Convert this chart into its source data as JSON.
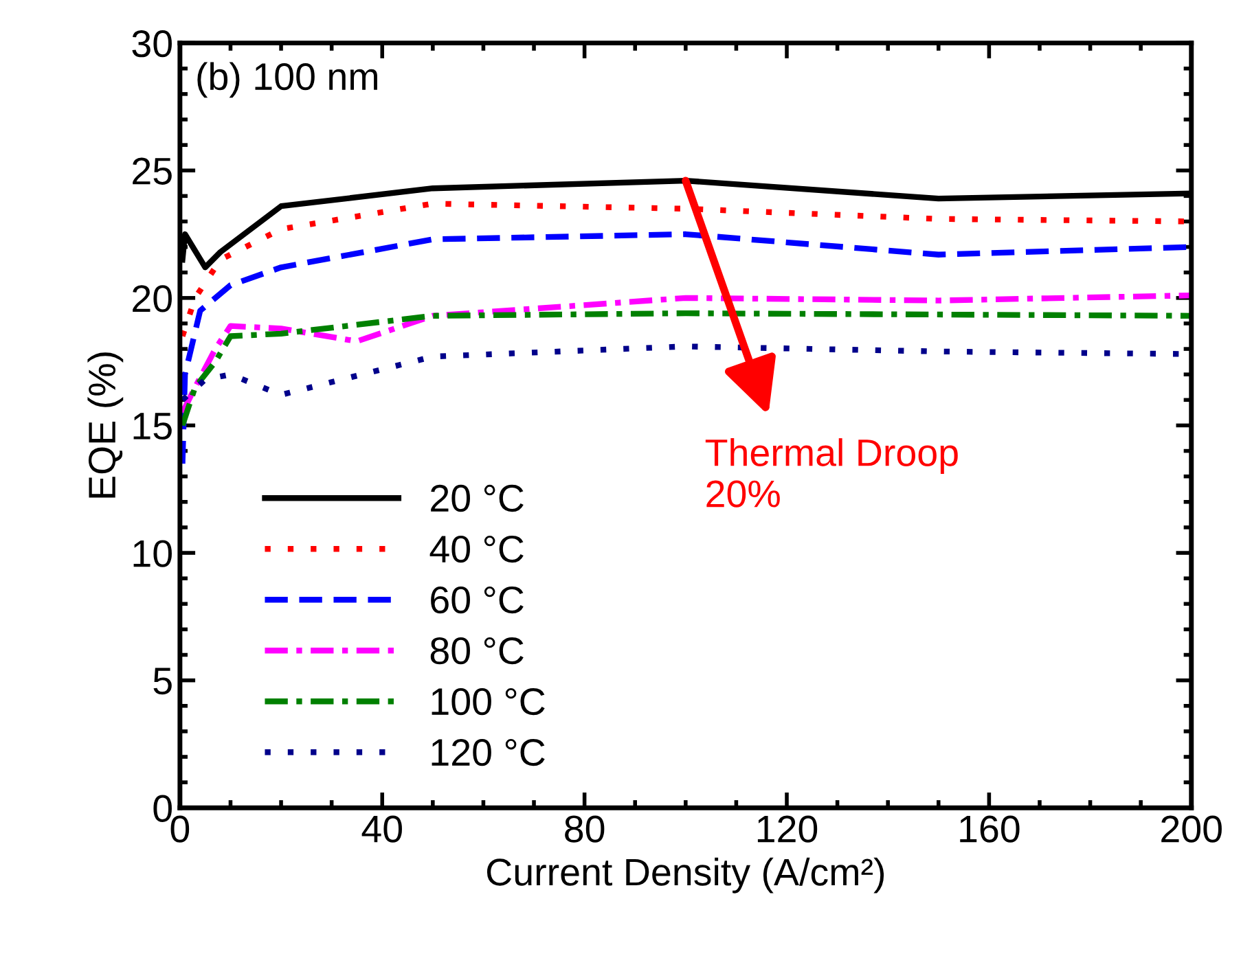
{
  "chart_data": {
    "type": "line",
    "xlabel": "Current Density (A/cm²)",
    "ylabel": "EQE (%)",
    "xlim": [
      0,
      200
    ],
    "ylim": [
      0,
      30
    ],
    "xticks": [
      0,
      40,
      80,
      120,
      160,
      200
    ],
    "yticks": [
      0,
      5,
      10,
      15,
      20,
      25,
      30
    ],
    "grid": false,
    "legend": "bottom left",
    "annotations": [
      "(b) 100 nm",
      {
        "text": "Thermal Droop\n20%",
        "x": 100,
        "y": 24.6
      }
    ],
    "series": [
      {
        "name": "20 °C",
        "color": "#000000",
        "line_style": "solid",
        "x": [
          0.5,
          1,
          5,
          8,
          20,
          50,
          100,
          150,
          200
        ],
        "values": [
          21.5,
          22.5,
          21.2,
          21.8,
          23.6,
          24.3,
          24.6,
          23.9,
          24.1
        ]
      },
      {
        "name": "40 °C",
        "color": "#ff0000",
        "line_style": "dotted",
        "x": [
          0.5,
          3,
          8,
          20,
          50,
          100,
          150,
          200
        ],
        "values": [
          18.5,
          20.0,
          21.5,
          22.7,
          23.7,
          23.5,
          23.1,
          23.0
        ]
      },
      {
        "name": "60 °C",
        "color": "#0000ff",
        "line_style": "dashed",
        "x": [
          0.5,
          1,
          4,
          10,
          20,
          50,
          100,
          150,
          200
        ],
        "values": [
          13.5,
          17.0,
          19.5,
          20.5,
          21.2,
          22.3,
          22.5,
          21.7,
          22.0
        ]
      },
      {
        "name": "80 °C",
        "color": "#ff00ff",
        "line_style": "dashdot",
        "x": [
          0.5,
          3,
          7,
          10,
          20,
          35,
          50,
          100,
          150,
          200
        ],
        "values": [
          15.5,
          16.5,
          18.0,
          18.9,
          18.8,
          18.3,
          19.3,
          20.0,
          19.9,
          20.1
        ]
      },
      {
        "name": "100 °C",
        "color": "#008000",
        "line_style": "dashdot",
        "x": [
          0.5,
          3,
          7,
          10,
          20,
          50,
          100,
          200
        ],
        "values": [
          15.0,
          16.5,
          17.5,
          18.5,
          18.6,
          19.3,
          19.4,
          19.3
        ]
      },
      {
        "name": "120 °C",
        "color": "#00008b",
        "line_style": "dotted",
        "x": [
          0.5,
          5,
          10,
          20,
          50,
          100,
          150,
          200
        ],
        "values": [
          16.0,
          16.8,
          17.0,
          16.2,
          17.7,
          18.1,
          17.9,
          17.8
        ]
      }
    ]
  }
}
